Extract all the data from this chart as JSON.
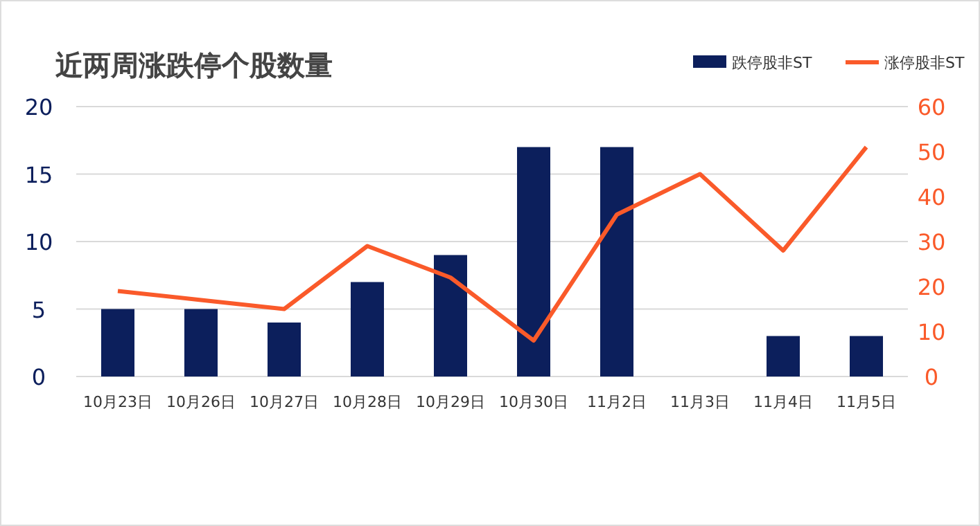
{
  "chart_data": {
    "type": "bar",
    "title": "近两周涨跌停个股数量",
    "categories": [
      "10月23日",
      "10月26日",
      "10月27日",
      "10月28日",
      "10月29日",
      "10月30日",
      "11月2日",
      "11月3日",
      "11月4日",
      "11月5日"
    ],
    "series": [
      {
        "name": "跌停股非ST",
        "color": "#0c1f5c",
        "values": [
          5,
          5,
          4,
          7,
          9,
          17,
          17,
          0,
          3,
          3
        ]
      },
      {
        "name": "涨停股非ST",
        "type": "line",
        "axis": "y2",
        "color": "#fa5a2a",
        "values": [
          19,
          17,
          15,
          29,
          22,
          8,
          36,
          45,
          28,
          51
        ]
      }
    ],
    "ylim": [
      0,
      20
    ],
    "yticks": [
      0,
      5,
      10,
      15,
      20
    ],
    "y2lim": [
      0,
      60
    ],
    "y2ticks": [
      0,
      10,
      20,
      30,
      40,
      50,
      60
    ],
    "grid": "y",
    "legend": "top right"
  }
}
